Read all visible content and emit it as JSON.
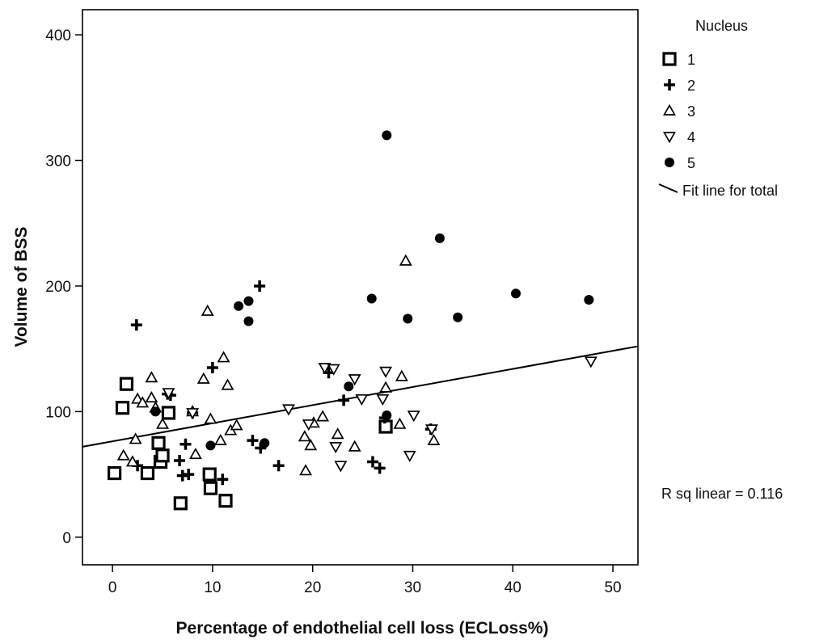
{
  "chart_data": {
    "type": "scatter",
    "xlabel": "Percentage of endothelial cell loss (ECLoss%)",
    "ylabel": "Volume of BSS",
    "xlim": [
      -3,
      52.5
    ],
    "ylim": [
      -22,
      420
    ],
    "x_ticks": [
      0,
      10,
      20,
      30,
      40,
      50
    ],
    "y_ticks": [
      0,
      100,
      200,
      300,
      400
    ],
    "grid": false,
    "legend": {
      "title": "Nucleus",
      "placement": "right",
      "fit_line_label": "Fit line for total"
    },
    "annotation": "R sq linear = 0.116",
    "series": [
      {
        "name": "1",
        "marker": "square",
        "points": [
          [
            0.2,
            51
          ],
          [
            1,
            103
          ],
          [
            1.4,
            122
          ],
          [
            3.5,
            51
          ],
          [
            4.6,
            75
          ],
          [
            4.8,
            60
          ],
          [
            5,
            65
          ],
          [
            5.6,
            99
          ],
          [
            6.8,
            27
          ],
          [
            9.7,
            50
          ],
          [
            9.8,
            39
          ],
          [
            11.3,
            29
          ],
          [
            27.3,
            88
          ]
        ]
      },
      {
        "name": "2",
        "marker": "plus",
        "points": [
          [
            2.4,
            169
          ],
          [
            2.5,
            57
          ],
          [
            5.5,
            114
          ],
          [
            5.8,
            113
          ],
          [
            6.7,
            61
          ],
          [
            7,
            49
          ],
          [
            7.3,
            74
          ],
          [
            7.6,
            50
          ],
          [
            8,
            99
          ],
          [
            10,
            135
          ],
          [
            11,
            46
          ],
          [
            14,
            77
          ],
          [
            14.7,
            200
          ],
          [
            14.8,
            71
          ],
          [
            16.6,
            57
          ],
          [
            21.6,
            131
          ],
          [
            23.1,
            109
          ],
          [
            26,
            60
          ],
          [
            26.7,
            55
          ],
          [
            27.2,
            95
          ],
          [
            31.8,
            86
          ]
        ]
      },
      {
        "name": "3",
        "marker": "triangle-up",
        "points": [
          [
            1.1,
            65
          ],
          [
            2,
            60
          ],
          [
            2.3,
            78
          ],
          [
            2.5,
            110
          ],
          [
            3,
            107
          ],
          [
            3.9,
            127
          ],
          [
            3.9,
            111
          ],
          [
            4.3,
            103
          ],
          [
            5,
            90
          ],
          [
            8,
            100
          ],
          [
            8.3,
            66
          ],
          [
            9.1,
            126
          ],
          [
            9.5,
            180
          ],
          [
            9.8,
            94
          ],
          [
            10.8,
            77
          ],
          [
            11.1,
            143
          ],
          [
            11.5,
            121
          ],
          [
            11.8,
            85
          ],
          [
            12.4,
            89
          ],
          [
            19.2,
            80
          ],
          [
            19.3,
            53
          ],
          [
            19.8,
            73
          ],
          [
            20.1,
            91
          ],
          [
            21,
            96
          ],
          [
            22.5,
            82
          ],
          [
            24.2,
            72
          ],
          [
            27.3,
            119
          ],
          [
            28.7,
            90
          ],
          [
            28.9,
            128
          ],
          [
            29.3,
            220
          ],
          [
            32.1,
            77
          ]
        ]
      },
      {
        "name": "4",
        "marker": "triangle-down",
        "points": [
          [
            5.6,
            115
          ],
          [
            8,
            99
          ],
          [
            17.6,
            102
          ],
          [
            19.6,
            90
          ],
          [
            21.2,
            135
          ],
          [
            22.1,
            134
          ],
          [
            22.3,
            72
          ],
          [
            22.8,
            57
          ],
          [
            24.2,
            126
          ],
          [
            24.9,
            110
          ],
          [
            27,
            110
          ],
          [
            27.3,
            132
          ],
          [
            29.7,
            65
          ],
          [
            30.1,
            97
          ],
          [
            47.8,
            140
          ],
          [
            31.9,
            86
          ]
        ]
      },
      {
        "name": "5",
        "marker": "circle",
        "points": [
          [
            4.3,
            100
          ],
          [
            9.8,
            73
          ],
          [
            12.6,
            184
          ],
          [
            13.6,
            188
          ],
          [
            13.6,
            172
          ],
          [
            15.2,
            75
          ],
          [
            23.6,
            120
          ],
          [
            25.9,
            190
          ],
          [
            27.4,
            320
          ],
          [
            27.4,
            97
          ],
          [
            29.5,
            174
          ],
          [
            32.7,
            238
          ],
          [
            34.5,
            175
          ],
          [
            40.3,
            194
          ],
          [
            47.6,
            189
          ]
        ]
      }
    ],
    "fit_line": {
      "x": [
        -3,
        52.5
      ],
      "y": [
        72,
        152
      ]
    }
  }
}
